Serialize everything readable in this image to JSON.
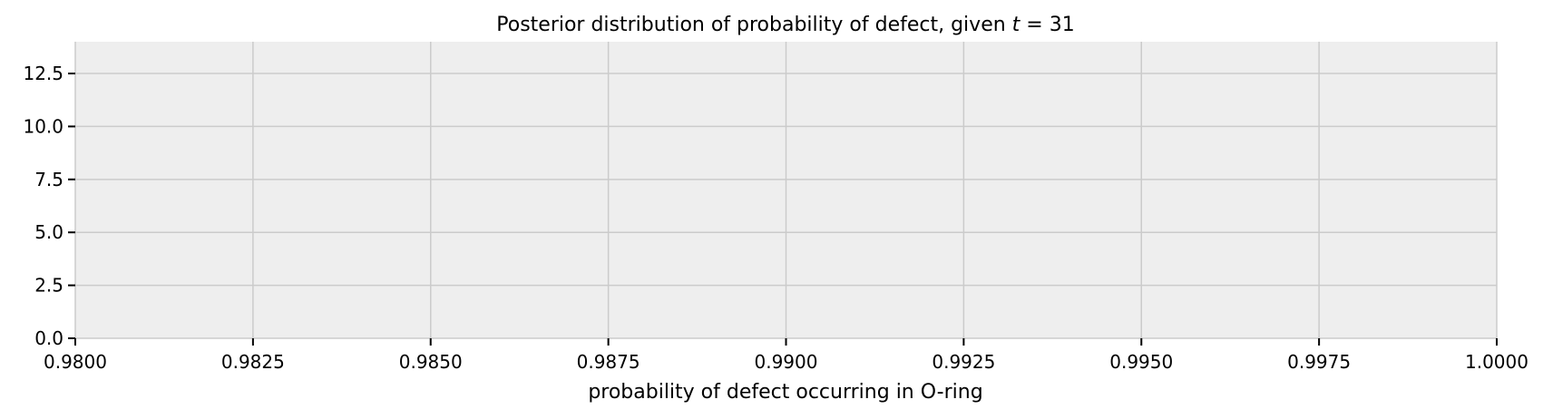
{
  "chart_data": {
    "type": "histogram",
    "title_prefix": "Posterior distribution of probability of defect, given ",
    "title_var": "t",
    "title_suffix": " = 31",
    "xlabel": "probability of defect occurring in O-ring",
    "ylabel": "",
    "xlim": [
      0.98,
      1.0
    ],
    "ylim": [
      0,
      14
    ],
    "x_ticks": [
      0.98,
      0.9825,
      0.985,
      0.9875,
      0.99,
      0.9925,
      0.995,
      0.9975,
      1.0
    ],
    "x_tick_labels": [
      "0.9800",
      "0.9825",
      "0.9850",
      "0.9875",
      "0.9900",
      "0.9925",
      "0.9950",
      "0.9975",
      "1.0000"
    ],
    "y_ticks": [
      0,
      2.5,
      5,
      7.5,
      10,
      12.5
    ],
    "y_tick_labels": [
      "0.0",
      "2.5",
      "5.0",
      "7.5",
      "10.0",
      "12.5"
    ],
    "bins": [],
    "grid": true,
    "colors": {
      "plot_background": "#eeeeee",
      "grid": "#cbcbcb",
      "tick": "#000000",
      "text": "#000000"
    }
  }
}
